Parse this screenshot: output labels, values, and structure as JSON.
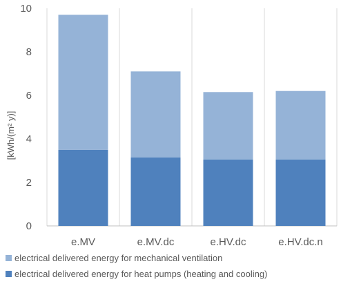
{
  "chart_data": {
    "type": "bar",
    "stacked": true,
    "categories": [
      "e.MV",
      "e.MV.dc",
      "e.HV.dc",
      "e.HV.dc.n"
    ],
    "series": [
      {
        "name": "electrical delivered energy for heat pumps (heating and cooling)",
        "values": [
          3.5,
          3.15,
          3.05,
          3.05
        ],
        "color": "#4f81bd"
      },
      {
        "name": "electrical delivered energy for mechanical ventilation",
        "values": [
          6.2,
          3.95,
          3.1,
          3.15
        ],
        "color": "#95b3d7"
      }
    ],
    "ylabel": "[kWh/(m² y)]",
    "ylim": [
      0,
      10
    ],
    "yticks": [
      0,
      2,
      4,
      6,
      8,
      10
    ],
    "grid": "vertical",
    "legend": "bottom"
  }
}
